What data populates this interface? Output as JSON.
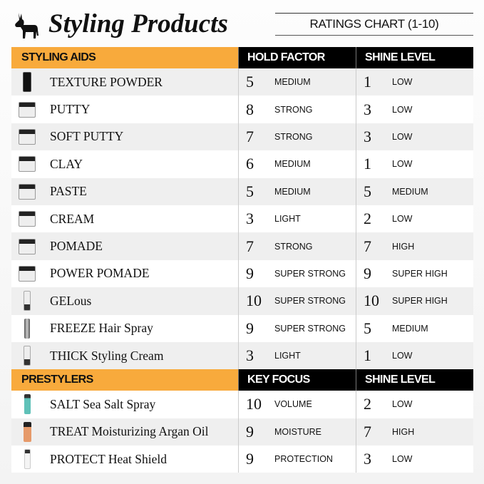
{
  "header": {
    "title": "Styling Products",
    "subtitle": "RATINGS CHART (1-10)",
    "logo": "donkey-logo"
  },
  "sections": [
    {
      "title": "STYLING AIDS",
      "col1": "HOLD FACTOR",
      "col2": "SHINE LEVEL",
      "rows": [
        {
          "name": "TEXTURE POWDER",
          "image": "black-bottle",
          "v1": "5",
          "l1": "MEDIUM",
          "v2": "1",
          "l2": "LOW"
        },
        {
          "name": "PUTTY",
          "image": "jar",
          "v1": "8",
          "l1": "STRONG",
          "v2": "3",
          "l2": "LOW"
        },
        {
          "name": "SOFT PUTTY",
          "image": "jar",
          "v1": "7",
          "l1": "STRONG",
          "v2": "3",
          "l2": "LOW"
        },
        {
          "name": "CLAY",
          "image": "jar",
          "v1": "6",
          "l1": "MEDIUM",
          "v2": "1",
          "l2": "LOW"
        },
        {
          "name": "PASTE",
          "image": "jar",
          "v1": "5",
          "l1": "MEDIUM",
          "v2": "5",
          "l2": "MEDIUM"
        },
        {
          "name": "CREAM",
          "image": "jar",
          "v1": "3",
          "l1": "LIGHT",
          "v2": "2",
          "l2": "LOW"
        },
        {
          "name": "POMADE",
          "image": "jar",
          "v1": "7",
          "l1": "STRONG",
          "v2": "7",
          "l2": "HIGH"
        },
        {
          "name": "POWER POMADE",
          "image": "jar",
          "v1": "9",
          "l1": "SUPER STRONG",
          "v2": "9",
          "l2": "SUPER HIGH"
        },
        {
          "name": "GELous",
          "image": "tube",
          "v1": "10",
          "l1": "SUPER STRONG",
          "v2": "10",
          "l2": "SUPER HIGH"
        },
        {
          "name": "FREEZE Hair Spray",
          "image": "spray-can",
          "v1": "9",
          "l1": "SUPER STRONG",
          "v2": "5",
          "l2": "MEDIUM"
        },
        {
          "name": "THICK Styling Cream",
          "image": "tube",
          "v1": "3",
          "l1": "LIGHT",
          "v2": "1",
          "l2": "LOW"
        }
      ]
    },
    {
      "title": "PRESTYLERS",
      "col1": "KEY FOCUS",
      "col2": "SHINE LEVEL",
      "rows": [
        {
          "name": "SALT Sea Salt Spray",
          "image": "teal-bottle",
          "v1": "10",
          "l1": "VOLUME",
          "v2": "2",
          "l2": "LOW"
        },
        {
          "name": "TREAT Moisturizing Argan Oil",
          "image": "orange-bottle",
          "v1": "9",
          "l1": "MOISTURE",
          "v2": "7",
          "l2": "HIGH"
        },
        {
          "name": "PROTECT Heat Shield",
          "image": "white-bottle",
          "v1": "9",
          "l1": "PROTECTION",
          "v2": "3",
          "l2": "LOW"
        }
      ]
    }
  ],
  "colors": {
    "section_header": "#f8aa3c",
    "column_header": "#000000",
    "row_alt": "#efefef"
  }
}
